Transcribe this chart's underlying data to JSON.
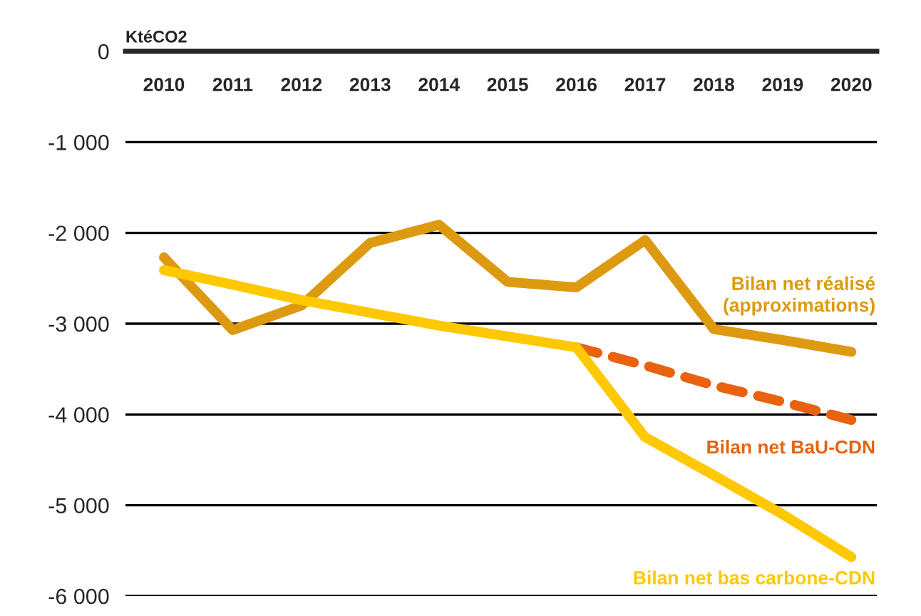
{
  "chart_data": {
    "type": "line",
    "ylabel": "KtéCO2",
    "categories": [
      "2010",
      "2011",
      "2012",
      "2013",
      "2014",
      "2015",
      "2016",
      "2017",
      "2018",
      "2019",
      "2020"
    ],
    "series": [
      {
        "name": "Bilan net réalisé\n(approximations)",
        "color": "#dd9a10",
        "line_style": "solid",
        "values": [
          -2270,
          -3070,
          -2800,
          -2110,
          -1910,
          -2540,
          -2600,
          -2080,
          -3060,
          -3180,
          -3310
        ]
      },
      {
        "name": "Bilan net BaU-CDN",
        "color": "#e8620f",
        "line_style": "dashed",
        "values": [
          null,
          null,
          null,
          null,
          null,
          null,
          -3260,
          -3460,
          -3680,
          -3860,
          -4060
        ]
      },
      {
        "name": "Bilan net bas carbone-CDN",
        "color": "#ffc800",
        "line_style": "solid",
        "values": [
          -2410,
          -2570,
          -2740,
          -2880,
          -3020,
          -3140,
          -3260,
          -4250,
          -4670,
          -5100,
          -5570
        ]
      }
    ],
    "ylim": [
      -6000,
      0
    ],
    "yticks": [
      0,
      {
        "value": -1000,
        "label": "-1 000"
      },
      {
        "value": -2000,
        "label": "-2 000"
      },
      {
        "value": -3000,
        "label": "-3 000"
      },
      {
        "value": -4000,
        "label": "-4 000"
      },
      {
        "value": -5000,
        "label": "-5 000"
      },
      {
        "value": -6000,
        "label": "-6 000"
      }
    ],
    "grid": "y",
    "legend": false,
    "marker": "none"
  }
}
